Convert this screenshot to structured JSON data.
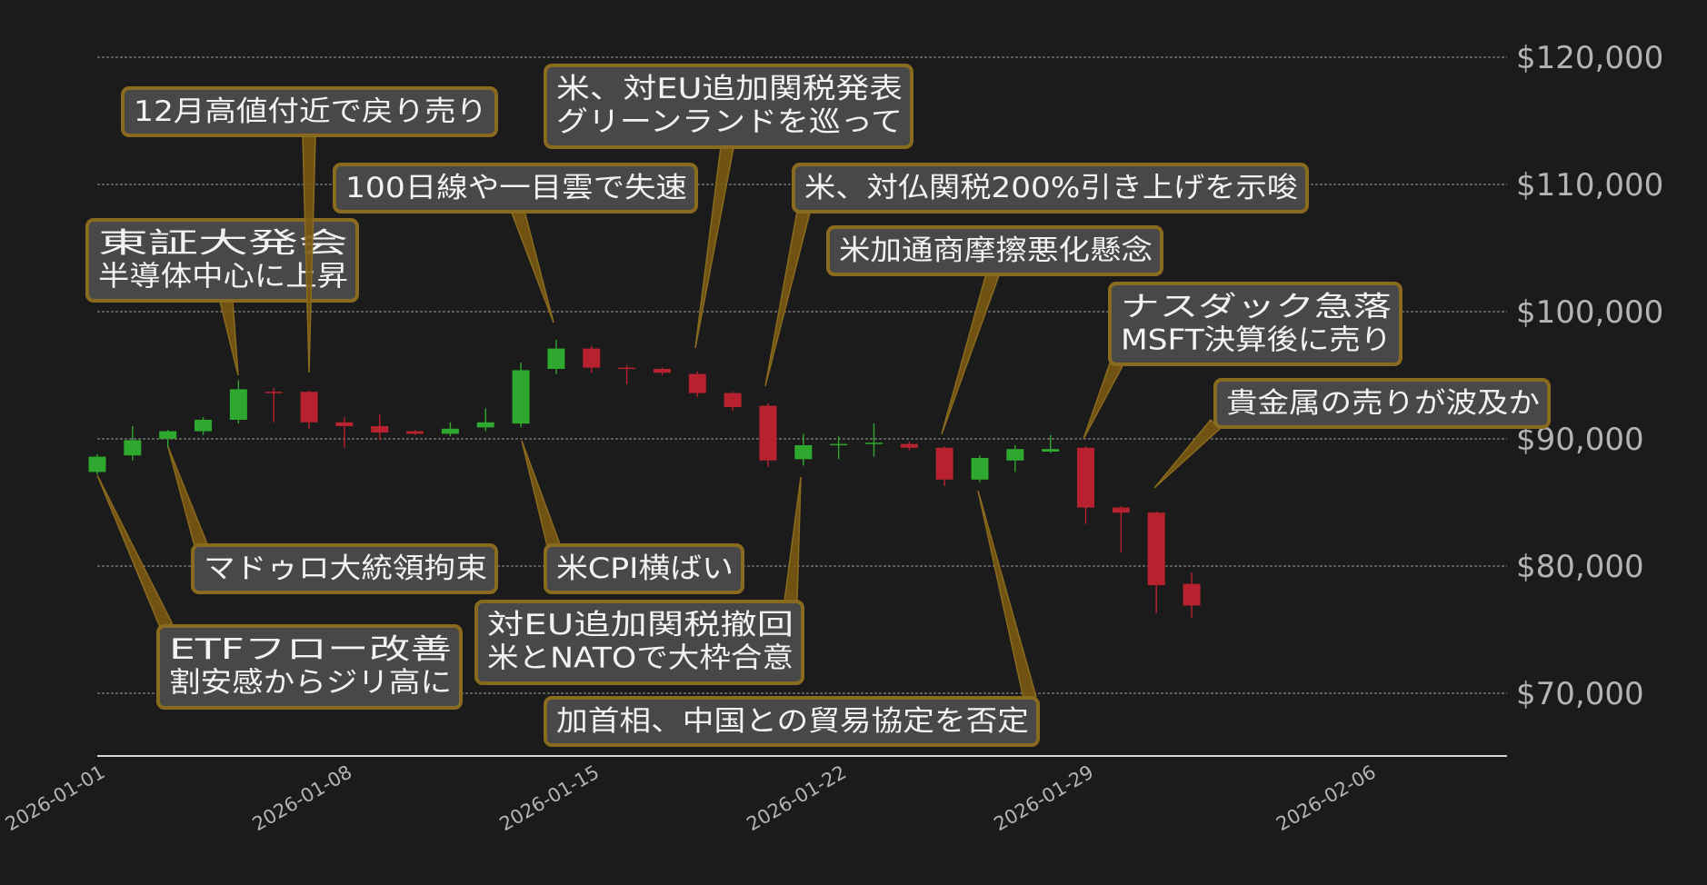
{
  "chart_data": {
    "type": "candlestick",
    "x_ticks": [
      "2026-01-01",
      "2026-01-08",
      "2026-01-15",
      "2026-01-22",
      "2026-01-29",
      "2026-02-06"
    ],
    "y_ticks": [
      "$70,000",
      "$80,000",
      "$90,000",
      "$100,000",
      "$110,000",
      "$120,000"
    ],
    "ylim": [
      65000,
      123500
    ],
    "xlim": [
      "2026-01-01",
      "2026-02-09"
    ],
    "grid": "horizontal dashed",
    "colors": {
      "background": "#1b1b1b",
      "up": "#2ea82e",
      "down": "#b8222e",
      "annotation_border": "#8a6a1e",
      "annotation_fill": "#4a4a4a",
      "annotation_text": "#f2f2f2",
      "axis_text": "#b4b4b4"
    },
    "candles": [
      {
        "date": "2026-01-01",
        "open": 87400,
        "high": 88800,
        "low": 87200,
        "close": 88600
      },
      {
        "date": "2026-01-02",
        "open": 88700,
        "high": 91000,
        "low": 88300,
        "close": 89900
      },
      {
        "date": "2026-01-03",
        "open": 90000,
        "high": 90700,
        "low": 89300,
        "close": 90600
      },
      {
        "date": "2026-01-04",
        "open": 90600,
        "high": 91700,
        "low": 90300,
        "close": 91500
      },
      {
        "date": "2026-01-05",
        "open": 91500,
        "high": 94600,
        "low": 91200,
        "close": 93900
      },
      {
        "date": "2026-01-06",
        "open": 93700,
        "high": 94000,
        "low": 91300,
        "close": 93600
      },
      {
        "date": "2026-01-07",
        "open": 93700,
        "high": 93800,
        "low": 90800,
        "close": 91300
      },
      {
        "date": "2026-01-08",
        "open": 91300,
        "high": 91700,
        "low": 89300,
        "close": 91000
      },
      {
        "date": "2026-01-09",
        "open": 91000,
        "high": 91900,
        "low": 89900,
        "close": 90500
      },
      {
        "date": "2026-01-10",
        "open": 90600,
        "high": 90700,
        "low": 90300,
        "close": 90400
      },
      {
        "date": "2026-01-11",
        "open": 90400,
        "high": 91300,
        "low": 90200,
        "close": 90800
      },
      {
        "date": "2026-01-12",
        "open": 90900,
        "high": 92400,
        "low": 90600,
        "close": 91300
      },
      {
        "date": "2026-01-13",
        "open": 91200,
        "high": 96000,
        "low": 90900,
        "close": 95400
      },
      {
        "date": "2026-01-14",
        "open": 95500,
        "high": 97800,
        "low": 95100,
        "close": 97100
      },
      {
        "date": "2026-01-15",
        "open": 97100,
        "high": 97300,
        "low": 95200,
        "close": 95600
      },
      {
        "date": "2026-01-16",
        "open": 95600,
        "high": 95800,
        "low": 94300,
        "close": 95500
      },
      {
        "date": "2026-01-17",
        "open": 95500,
        "high": 95600,
        "low": 95000,
        "close": 95200
      },
      {
        "date": "2026-01-18",
        "open": 95100,
        "high": 95300,
        "low": 93300,
        "close": 93600
      },
      {
        "date": "2026-01-19",
        "open": 93600,
        "high": 93700,
        "low": 92200,
        "close": 92500
      },
      {
        "date": "2026-01-20",
        "open": 92600,
        "high": 92800,
        "low": 87800,
        "close": 88300
      },
      {
        "date": "2026-01-21",
        "open": 88400,
        "high": 90400,
        "low": 87900,
        "close": 89500
      },
      {
        "date": "2026-01-22",
        "open": 89500,
        "high": 90200,
        "low": 88400,
        "close": 89600
      },
      {
        "date": "2026-01-23",
        "open": 89600,
        "high": 91200,
        "low": 88600,
        "close": 89700
      },
      {
        "date": "2026-01-24",
        "open": 89600,
        "high": 89800,
        "low": 89100,
        "close": 89300
      },
      {
        "date": "2026-01-25",
        "open": 89300,
        "high": 89400,
        "low": 86300,
        "close": 86800
      },
      {
        "date": "2026-01-26",
        "open": 86800,
        "high": 88700,
        "low": 86600,
        "close": 88500
      },
      {
        "date": "2026-01-27",
        "open": 88300,
        "high": 89500,
        "low": 87400,
        "close": 89200
      },
      {
        "date": "2026-01-28",
        "open": 89000,
        "high": 90300,
        "low": 88900,
        "close": 89200
      },
      {
        "date": "2026-01-29",
        "open": 89300,
        "high": 89400,
        "low": 83300,
        "close": 84600
      },
      {
        "date": "2026-01-30",
        "open": 84600,
        "high": 84700,
        "low": 81100,
        "close": 84200
      },
      {
        "date": "2026-01-31",
        "open": 84200,
        "high": 84300,
        "low": 76300,
        "close": 78500
      },
      {
        "date": "2026-02-01",
        "open": 78600,
        "high": 79500,
        "low": 75900,
        "close": 76900
      }
    ],
    "annotations": [
      {
        "lines": [
          "ETFフロー改善",
          "割安感からジリ高に"
        ]
      },
      {
        "lines": [
          "マドゥロ大統領拘束"
        ]
      },
      {
        "lines": [
          "東証大発会",
          "半導体中心に上昇"
        ]
      },
      {
        "lines": [
          "12月高値付近で戻り売り"
        ]
      },
      {
        "lines": [
          "100日線や一目雲で失速"
        ]
      },
      {
        "lines": [
          "米CPI横ばい"
        ]
      },
      {
        "lines": [
          "米、対EU追加関税発表",
          "グリーンランドを巡って"
        ]
      },
      {
        "lines": [
          "米、対仏関税200%引き上げを示唆"
        ]
      },
      {
        "lines": [
          "対EU追加関税撤回",
          "米とNATOで大枠合意"
        ]
      },
      {
        "lines": [
          "米加通商摩擦悪化懸念"
        ]
      },
      {
        "lines": [
          "加首相、中国との貿易協定を否定"
        ]
      },
      {
        "lines": [
          "ナスダック急落",
          "MSFT決算後に売り"
        ]
      },
      {
        "lines": [
          "貴金属の売りが波及か"
        ]
      }
    ]
  }
}
